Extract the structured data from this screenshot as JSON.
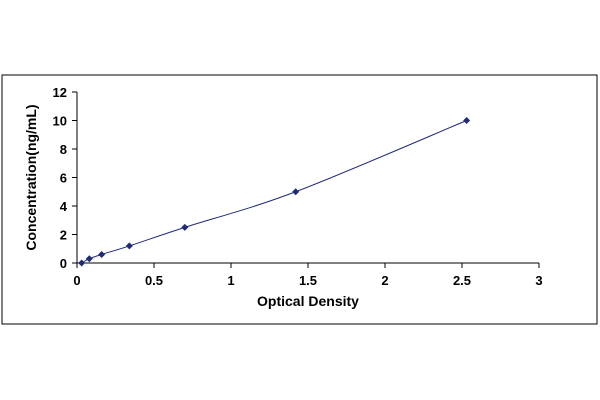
{
  "chart_data": {
    "type": "scatter",
    "title": "",
    "xlabel": "Optical Density",
    "ylabel": "Concentration(ng/mL)",
    "xlim": [
      0,
      3
    ],
    "ylim": [
      0,
      12
    ],
    "xticks": [
      "0",
      "0.5",
      "1",
      "1.5",
      "2",
      "2.5",
      "3"
    ],
    "yticks": [
      "0",
      "2",
      "4",
      "6",
      "8",
      "10",
      "12"
    ],
    "grid": false,
    "legend": "none",
    "points": [
      {
        "x": 0.03,
        "y": 0.0
      },
      {
        "x": 0.08,
        "y": 0.3
      },
      {
        "x": 0.16,
        "y": 0.6
      },
      {
        "x": 0.34,
        "y": 1.2
      },
      {
        "x": 0.7,
        "y": 2.5
      },
      {
        "x": 1.42,
        "y": 5.0
      },
      {
        "x": 2.53,
        "y": 10.0
      }
    ],
    "trendline": true,
    "colors": {
      "marker": "#1f2a7a",
      "line": "#1f2a7a",
      "axis": "#000000",
      "frame": "#000000"
    }
  }
}
